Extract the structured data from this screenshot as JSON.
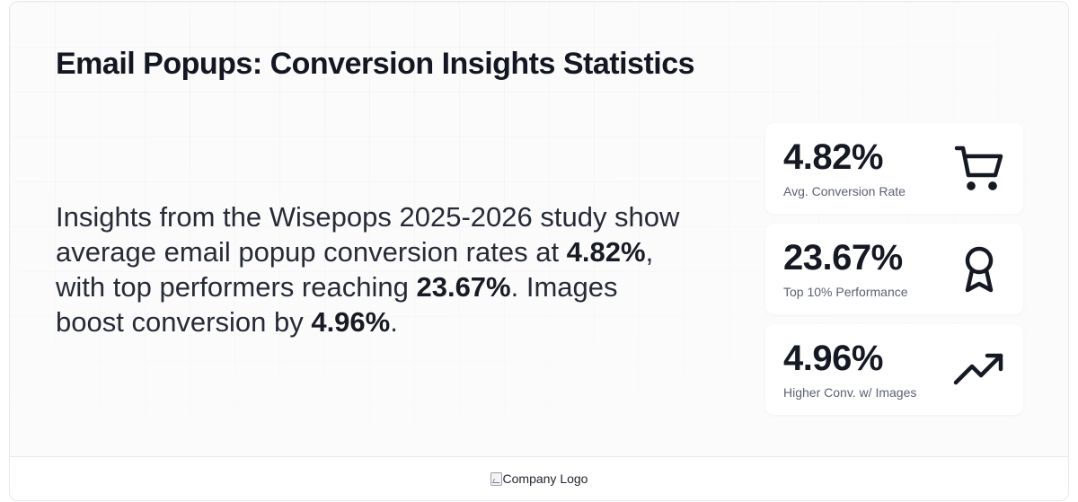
{
  "title": "Email Popups: Conversion Insights Statistics",
  "summary": {
    "part1": "Insights from the Wisepops 2025-2026 study show average email popup conversion rates at ",
    "bold1": "4.82%",
    "part2": ", with top performers reaching ",
    "bold2": "23.67%",
    "part3": ". Images boost conversion by ",
    "bold3": "4.96%",
    "part4": "."
  },
  "stats": [
    {
      "value": "4.82%",
      "label": "Avg. Conversion Rate",
      "icon": "shopping-cart-icon"
    },
    {
      "value": "23.67%",
      "label": "Top 10% Performance",
      "icon": "award-ribbon-icon"
    },
    {
      "value": "4.96%",
      "label": "Higher Conv. w/ Images",
      "icon": "trending-up-icon"
    }
  ],
  "footer": {
    "logo_alt": "Company Logo"
  },
  "colors": {
    "text": "#171b24",
    "muted": "#5b6170",
    "card_bg": "#ffffff",
    "page_bg": "#fbfbfc"
  }
}
